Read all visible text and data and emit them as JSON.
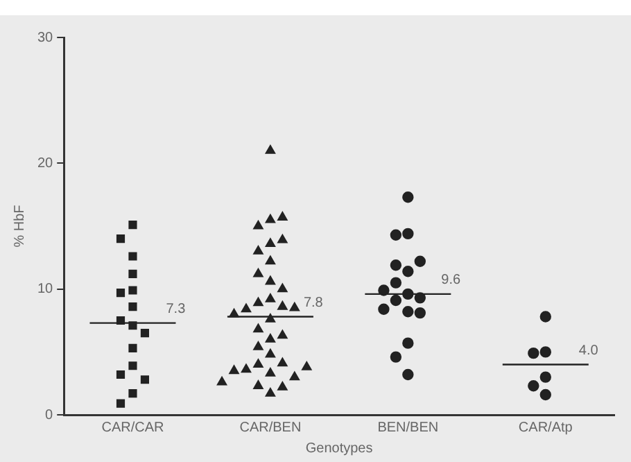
{
  "chart_data": {
    "type": "scatter",
    "xlabel": "Genotypes",
    "ylabel": "% HbF",
    "categories": [
      "CAR/CAR",
      "CAR/BEN",
      "BEN/BEN",
      "CAR/Atp"
    ],
    "ylim": [
      0,
      30
    ],
    "yticks": [
      0,
      10,
      20,
      30
    ],
    "grid": false,
    "legend": false,
    "series": [
      {
        "color": "#222222",
        "marker": "square",
        "x": [
          "CAR/CAR",
          "CAR/CAR",
          "CAR/CAR",
          "CAR/CAR",
          "CAR/CAR",
          "CAR/CAR",
          "CAR/CAR",
          "CAR/CAR",
          "CAR/CAR",
          "CAR/CAR",
          "CAR/CAR",
          "CAR/CAR",
          "CAR/CAR",
          "CAR/CAR",
          "CAR/CAR",
          "CAR/CAR"
        ],
        "values": [
          15.1,
          14.0,
          12.6,
          11.2,
          9.9,
          9.7,
          8.6,
          7.5,
          7.1,
          6.5,
          5.3,
          3.9,
          3.2,
          2.8,
          1.7,
          0.9
        ]
      },
      {
        "color": "#222222",
        "marker": "triangle",
        "x": [
          "CAR/BEN",
          "CAR/BEN",
          "CAR/BEN",
          "CAR/BEN",
          "CAR/BEN",
          "CAR/BEN",
          "CAR/BEN",
          "CAR/BEN",
          "CAR/BEN",
          "CAR/BEN",
          "CAR/BEN",
          "CAR/BEN",
          "CAR/BEN",
          "CAR/BEN",
          "CAR/BEN",
          "CAR/BEN",
          "CAR/BEN",
          "CAR/BEN",
          "CAR/BEN",
          "CAR/BEN",
          "CAR/BEN",
          "CAR/BEN",
          "CAR/BEN",
          "CAR/BEN",
          "CAR/BEN",
          "CAR/BEN",
          "CAR/BEN",
          "CAR/BEN",
          "CAR/BEN",
          "CAR/BEN",
          "CAR/BEN",
          "CAR/BEN",
          "CAR/BEN",
          "CAR/BEN"
        ],
        "values": [
          21.0,
          15.5,
          15.0,
          15.7,
          13.6,
          13.9,
          13.0,
          12.2,
          11.2,
          10.6,
          10.0,
          9.2,
          8.9,
          8.6,
          8.4,
          8.5,
          8.0,
          7.6,
          6.8,
          6.0,
          6.3,
          5.4,
          4.8,
          4.0,
          4.1,
          3.6,
          3.3,
          3.0,
          3.5,
          3.8,
          2.3,
          1.7,
          2.2,
          2.6
        ]
      },
      {
        "color": "#222222",
        "marker": "circle",
        "x": [
          "BEN/BEN",
          "BEN/BEN",
          "BEN/BEN",
          "BEN/BEN",
          "BEN/BEN",
          "BEN/BEN",
          "BEN/BEN",
          "BEN/BEN",
          "BEN/BEN",
          "BEN/BEN",
          "BEN/BEN",
          "BEN/BEN",
          "BEN/BEN",
          "BEN/BEN",
          "BEN/BEN",
          "BEN/BEN",
          "BEN/BEN"
        ],
        "values": [
          17.3,
          14.4,
          14.3,
          11.4,
          11.9,
          12.2,
          10.5,
          9.6,
          9.1,
          9.3,
          9.9,
          8.2,
          8.1,
          8.4,
          5.7,
          4.6,
          3.2
        ]
      },
      {
        "color": "#222222",
        "marker": "circle",
        "x": [
          "CAR/Atp",
          "CAR/Atp",
          "CAR/Atp",
          "CAR/Atp",
          "CAR/Atp",
          "CAR/Atp"
        ],
        "values": [
          7.8,
          5.0,
          4.9,
          3.0,
          2.3,
          1.6
        ]
      },
      {
        "type": "box",
        "color": "#222222",
        "boxes": [
          {
            "low": 7.3,
            "q1": 7.3,
            "median": 7.3,
            "q3": 7.3,
            "high": 7.3
          },
          {
            "low": 7.8,
            "q1": 7.8,
            "median": 7.8,
            "q3": 7.8,
            "high": 7.8
          },
          {
            "low": 9.6,
            "q1": 9.6,
            "median": 9.6,
            "q3": 9.6,
            "high": 9.6
          },
          {
            "low": 4.0,
            "q1": 4.0,
            "median": 4.0,
            "q3": 4.0,
            "high": 4.0
          }
        ],
        "value_labels": [
          "7.3",
          "7.8",
          "9.6",
          "4.0"
        ]
      }
    ]
  }
}
